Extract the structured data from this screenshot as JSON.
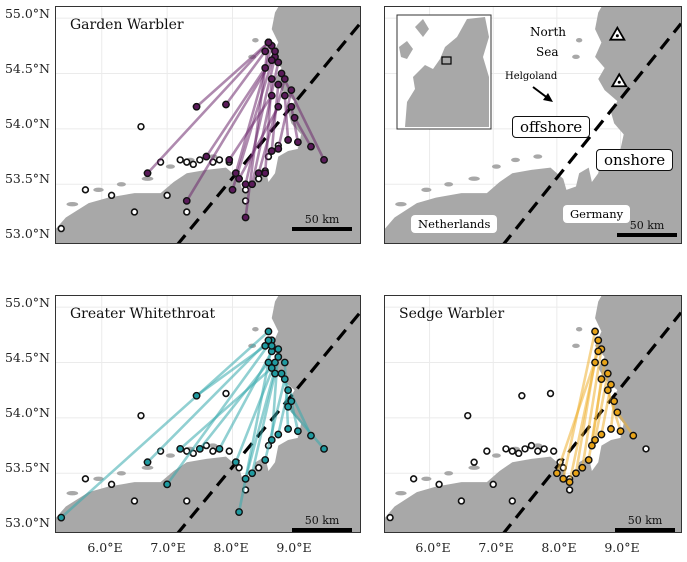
{
  "panels": [
    {
      "title": "Garden Warbler",
      "color": "#5a1a5a",
      "line_color": "#6e2a6e"
    },
    {
      "title": "",
      "color": "",
      "line_color": ""
    },
    {
      "title": "Greater Whitethroat",
      "color": "#1f9aa0",
      "line_color": "#36a9ad"
    },
    {
      "title": "Sedge Warbler",
      "color": "#e8a317",
      "line_color": "#efb032"
    }
  ],
  "scale_label": "50 km",
  "y_ticks": [
    "55.0°N",
    "54.5°N",
    "54.0°N",
    "53.5°N",
    "53.0°N"
  ],
  "x_ticks": [
    "6.0°E",
    "7.0°E",
    "8.0°E",
    "9.0°E"
  ],
  "map_labels": {
    "north_sea": "North",
    "north_sea_2": "Sea",
    "helgoland": "Helgoland",
    "offshore": "offshore",
    "onshore": "onshore",
    "netherlands": "Netherlands",
    "germany": "Germany"
  },
  "colors": {
    "land": "#a8a8a8",
    "sea": "#ffffff",
    "grid": "#ebebeb",
    "frame": "#333333"
  },
  "icons": [
    "triangle-station-icon",
    "dashed-divider-line",
    "inset-europe-map"
  ],
  "receiver_lon_lat": [
    [
      5.38,
      53.1
    ],
    [
      5.75,
      53.45
    ],
    [
      6.15,
      53.4
    ],
    [
      6.5,
      53.25
    ],
    [
      6.6,
      54.02
    ],
    [
      6.7,
      53.6
    ],
    [
      6.9,
      53.7
    ],
    [
      7.0,
      53.4
    ],
    [
      7.2,
      53.72
    ],
    [
      7.3,
      53.7
    ],
    [
      7.4,
      53.68
    ],
    [
      7.5,
      53.72
    ],
    [
      7.6,
      53.75
    ],
    [
      7.7,
      53.7
    ],
    [
      7.8,
      53.72
    ],
    [
      7.95,
      53.7
    ],
    [
      8.05,
      53.6
    ],
    [
      8.1,
      53.55
    ],
    [
      8.2,
      53.45
    ],
    [
      8.3,
      53.5
    ],
    [
      8.4,
      53.55
    ],
    [
      8.5,
      53.62
    ],
    [
      8.55,
      53.75
    ],
    [
      8.6,
      53.8
    ],
    [
      8.7,
      53.85
    ],
    [
      8.85,
      53.9
    ],
    [
      9.0,
      53.88
    ],
    [
      9.2,
      53.84
    ],
    [
      9.4,
      53.72
    ],
    [
      7.45,
      54.2
    ],
    [
      7.9,
      54.22
    ],
    [
      8.2,
      53.35
    ],
    [
      7.3,
      53.25
    ]
  ],
  "tracks": {
    "garden_warbler": [
      [
        8.55,
        54.78,
        6.7,
        53.6
      ],
      [
        8.55,
        54.78,
        7.45,
        54.2
      ],
      [
        8.5,
        54.7,
        7.9,
        54.22
      ],
      [
        8.6,
        54.75,
        8.05,
        53.6
      ],
      [
        8.65,
        54.65,
        8.2,
        53.5
      ],
      [
        8.7,
        54.6,
        8.3,
        53.5
      ],
      [
        8.6,
        54.45,
        8.5,
        53.6
      ],
      [
        8.7,
        54.4,
        8.6,
        53.8
      ],
      [
        8.8,
        54.3,
        8.85,
        53.9
      ],
      [
        8.9,
        54.2,
        9.0,
        53.88
      ],
      [
        8.95,
        54.1,
        9.2,
        53.84
      ],
      [
        8.75,
        54.5,
        9.4,
        53.72
      ],
      [
        8.55,
        54.78,
        8.2,
        53.2
      ],
      [
        8.6,
        54.62,
        7.3,
        53.35
      ],
      [
        8.5,
        54.55,
        7.6,
        53.75
      ],
      [
        8.65,
        54.7,
        8.0,
        53.45
      ],
      [
        8.8,
        54.45,
        8.4,
        53.6
      ],
      [
        8.9,
        54.35,
        8.7,
        53.82
      ],
      [
        8.7,
        54.2,
        8.1,
        53.55
      ],
      [
        8.6,
        54.3,
        7.95,
        53.72
      ]
    ],
    "greater_whitethroat": [
      [
        8.55,
        54.78,
        5.38,
        53.1
      ],
      [
        8.5,
        54.65,
        7.45,
        54.2
      ],
      [
        8.6,
        54.7,
        7.0,
        53.4
      ],
      [
        8.55,
        54.5,
        7.5,
        53.72
      ],
      [
        8.6,
        54.6,
        7.8,
        53.72
      ],
      [
        8.65,
        54.5,
        8.05,
        53.6
      ],
      [
        8.7,
        54.55,
        8.2,
        53.45
      ],
      [
        8.65,
        54.4,
        8.3,
        53.5
      ],
      [
        8.8,
        54.35,
        8.5,
        53.62
      ],
      [
        8.85,
        54.25,
        8.7,
        53.85
      ],
      [
        8.9,
        54.15,
        9.0,
        53.88
      ],
      [
        8.75,
        54.4,
        9.2,
        53.84
      ],
      [
        8.6,
        54.65,
        8.1,
        53.15
      ],
      [
        8.7,
        54.62,
        8.6,
        53.8
      ],
      [
        8.8,
        54.5,
        8.85,
        53.9
      ],
      [
        8.85,
        54.1,
        9.4,
        53.72
      ],
      [
        8.6,
        54.45,
        7.2,
        53.72
      ],
      [
        8.55,
        54.7,
        6.7,
        53.6
      ]
    ],
    "sedge_warbler": [
      [
        8.6,
        54.78,
        8.1,
        53.45
      ],
      [
        8.65,
        54.7,
        8.3,
        53.5
      ],
      [
        8.7,
        54.62,
        8.4,
        53.55
      ],
      [
        8.75,
        54.5,
        8.5,
        53.62
      ],
      [
        8.8,
        54.4,
        8.6,
        53.8
      ],
      [
        8.85,
        54.3,
        8.7,
        53.85
      ],
      [
        8.9,
        54.15,
        8.85,
        53.9
      ],
      [
        8.95,
        54.05,
        9.2,
        53.84
      ],
      [
        8.6,
        54.5,
        8.2,
        53.42
      ],
      [
        8.7,
        54.35,
        8.55,
        53.75
      ],
      [
        8.8,
        54.25,
        9.0,
        53.88
      ],
      [
        8.65,
        54.6,
        8.0,
        53.5
      ]
    ]
  }
}
